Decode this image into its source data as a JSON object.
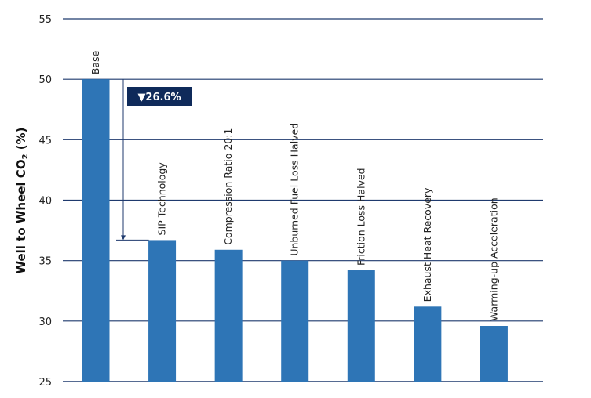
{
  "chart_data": {
    "type": "bar",
    "categories": [
      "Base",
      "SIP Technology",
      "Compression Ratio 20:1",
      "Unburned Fuel Loss Halved",
      "Friction Loss Halved",
      "Exhaust Heat Recovery",
      "Warming-up Acceleration"
    ],
    "values": [
      50,
      36.7,
      35.9,
      35.0,
      34.2,
      31.2,
      29.6
    ],
    "ylabel_main": "Well to Wheel CO",
    "ylabel_sub": "2",
    "ylabel_unit": " (%)",
    "ylim": [
      25,
      55
    ],
    "yticks": [
      25,
      30,
      35,
      40,
      45,
      50,
      55
    ],
    "grid": true,
    "annotation": "▼26.6%",
    "colors": {
      "bar": "#2e75b6",
      "grid": "#1f3a6e",
      "annotation_bg": "#0f2a5a",
      "arrow": "#1f3a6e"
    }
  }
}
